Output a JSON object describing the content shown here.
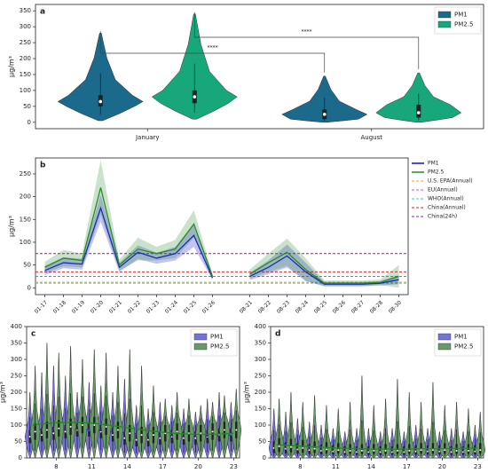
{
  "chart_data": [
    {
      "type": "violin",
      "label": "a",
      "y_label": "μg/m³",
      "categories": [
        "January",
        "August"
      ],
      "ylim": [
        -20,
        370
      ],
      "yticks": [
        0,
        50,
        100,
        150,
        200,
        250,
        300,
        350
      ],
      "legend": "upper right",
      "annotations": [
        "****",
        "****"
      ],
      "series": [
        {
          "name": "PM1",
          "color": "#1b6a8c",
          "min": [
            5,
            0
          ],
          "q1": [
            50,
            10
          ],
          "median": [
            65,
            25
          ],
          "q3": [
            85,
            40
          ],
          "max": [
            280,
            145
          ]
        },
        {
          "name": "PM2.5",
          "color": "#17a77a",
          "min": [
            10,
            0
          ],
          "q1": [
            60,
            15
          ],
          "median": [
            80,
            30
          ],
          "q3": [
            100,
            55
          ],
          "max": [
            340,
            155
          ]
        }
      ]
    },
    {
      "type": "line",
      "label": "b",
      "y_label": "μg/m³",
      "categories": [
        "01-17",
        "01-18",
        "01-19",
        "01-20",
        "01-21",
        "01-22",
        "01-23",
        "01-24",
        "01-25",
        "01-26",
        null,
        "08-21",
        "08-22",
        "08-23",
        "08-24",
        "08-25",
        "08-26",
        "08-27",
        "08-28",
        "08-30"
      ],
      "ylim": [
        -15,
        285
      ],
      "yticks": [
        0,
        50,
        100,
        150,
        200,
        250
      ],
      "legend": "outside right",
      "series": [
        {
          "name": "PM1",
          "color": "#1010d8",
          "values": [
            38,
            55,
            52,
            175,
            45,
            78,
            65,
            75,
            115,
            22,
            null,
            25,
            45,
            70,
            35,
            8,
            8,
            8,
            10,
            18
          ],
          "errors": [
            10,
            12,
            12,
            30,
            10,
            15,
            12,
            15,
            25,
            5,
            null,
            8,
            15,
            25,
            20,
            5,
            5,
            5,
            5,
            10
          ]
        },
        {
          "name": "PM2.5",
          "color": "#2a8a2a",
          "values": [
            45,
            65,
            60,
            220,
            50,
            85,
            75,
            85,
            140,
            25,
            null,
            30,
            55,
            78,
            40,
            10,
            10,
            10,
            12,
            25
          ],
          "errors": [
            12,
            18,
            15,
            60,
            12,
            25,
            15,
            20,
            30,
            6,
            null,
            10,
            20,
            30,
            25,
            6,
            6,
            6,
            6,
            25
          ]
        }
      ],
      "references": [
        {
          "name": "U.S. EPA(Annual)",
          "value": 12,
          "color": "#f0a030"
        },
        {
          "name": "EU(Annual)",
          "value": 25,
          "color": "#e040e0"
        },
        {
          "name": "WHO(Annual)",
          "value": 10,
          "color": "#30d0d0"
        },
        {
          "name": "China(Annual)",
          "value": 35,
          "color": "#e02020"
        },
        {
          "name": "China(24h)",
          "value": 75,
          "color": "#902090"
        }
      ]
    },
    {
      "type": "violin",
      "label": "c",
      "y_label": "μg/m³",
      "categories": [
        null,
        null,
        "8",
        null,
        null,
        "11",
        null,
        null,
        "14",
        null,
        null,
        "17",
        null,
        null,
        "20",
        null,
        null,
        "23"
      ],
      "ylim": [
        0,
        400
      ],
      "yticks": [
        0,
        50,
        100,
        150,
        200,
        250,
        300,
        350,
        400
      ],
      "legend": "upper right",
      "series": [
        {
          "name": "PM1",
          "color": "#7474d8",
          "trend_color": "#2030c0",
          "q1": [
            45,
            50,
            55,
            60,
            65,
            65,
            60,
            50,
            40,
            35,
            35,
            40,
            45,
            40,
            40,
            45,
            50,
            50
          ],
          "median": [
            65,
            70,
            75,
            80,
            85,
            85,
            80,
            70,
            60,
            55,
            55,
            60,
            65,
            60,
            60,
            65,
            70,
            70
          ],
          "q3": [
            85,
            90,
            95,
            100,
            105,
            105,
            100,
            90,
            80,
            75,
            75,
            80,
            85,
            80,
            80,
            85,
            90,
            90
          ],
          "max": [
            200,
            260,
            280,
            250,
            200,
            230,
            220,
            200,
            240,
            160,
            150,
            170,
            160,
            150,
            140,
            180,
            200,
            170
          ],
          "trend": [
            85,
            87,
            88,
            88,
            87,
            85,
            82,
            79,
            76,
            73,
            70,
            68,
            67,
            66,
            66,
            67,
            68,
            70
          ]
        },
        {
          "name": "PM2.5",
          "color": "#679a67",
          "trend_color": "#1f8a1f",
          "q1": [
            55,
            60,
            65,
            70,
            75,
            75,
            70,
            60,
            50,
            45,
            45,
            50,
            55,
            50,
            50,
            55,
            60,
            60
          ],
          "median": [
            80,
            85,
            90,
            95,
            100,
            100,
            95,
            85,
            75,
            70,
            70,
            75,
            80,
            75,
            75,
            80,
            85,
            85
          ],
          "q3": [
            105,
            110,
            115,
            120,
            125,
            125,
            120,
            110,
            100,
            95,
            95,
            100,
            105,
            100,
            100,
            105,
            110,
            110
          ],
          "max": [
            280,
            350,
            320,
            340,
            300,
            330,
            320,
            280,
            330,
            280,
            220,
            180,
            200,
            180,
            160,
            170,
            190,
            210
          ],
          "trend": [
            100,
            104,
            107,
            108,
            108,
            106,
            102,
            97,
            92,
            87,
            82,
            78,
            75,
            73,
            72,
            72,
            73,
            75
          ]
        }
      ]
    },
    {
      "type": "violin",
      "label": "d",
      "y_label": "μg/m³",
      "categories": [
        null,
        null,
        "8",
        null,
        null,
        "11",
        null,
        null,
        "14",
        null,
        null,
        "17",
        null,
        null,
        "20",
        null,
        null,
        "23"
      ],
      "ylim": [
        0,
        400
      ],
      "yticks": [
        0,
        50,
        100,
        150,
        200,
        250,
        300,
        350,
        400
      ],
      "legend": "upper right",
      "series": [
        {
          "name": "PM1",
          "color": "#7474d8",
          "trend_color": "#2030c0",
          "q1": [
            15,
            14,
            13,
            12,
            11,
            10,
            9,
            9,
            9,
            9,
            9,
            9,
            10,
            10,
            10,
            9,
            9,
            10
          ],
          "median": [
            30,
            28,
            26,
            24,
            22,
            20,
            18,
            18,
            18,
            18,
            18,
            18,
            20,
            20,
            20,
            18,
            18,
            20
          ],
          "q3": [
            50,
            48,
            45,
            42,
            40,
            38,
            35,
            35,
            35,
            35,
            35,
            35,
            38,
            38,
            38,
            35,
            35,
            38
          ],
          "max": [
            150,
            140,
            120,
            110,
            100,
            90,
            80,
            90,
            90,
            80,
            90,
            80,
            100,
            90,
            80,
            90,
            80,
            100
          ],
          "trend": [
            45,
            42,
            39,
            36,
            33,
            31,
            29,
            28,
            27,
            27,
            27,
            27,
            28,
            28,
            29,
            29,
            30,
            30
          ]
        },
        {
          "name": "PM2.5",
          "color": "#679a67",
          "trend_color": "#1f8a1f",
          "q1": [
            18,
            17,
            16,
            15,
            14,
            13,
            12,
            12,
            12,
            12,
            12,
            12,
            13,
            13,
            13,
            12,
            12,
            13
          ],
          "median": [
            35,
            33,
            30,
            28,
            26,
            24,
            22,
            22,
            22,
            22,
            22,
            22,
            24,
            24,
            24,
            22,
            22,
            24
          ],
          "q3": [
            60,
            58,
            55,
            50,
            48,
            45,
            42,
            42,
            42,
            42,
            42,
            42,
            45,
            45,
            45,
            42,
            42,
            45
          ],
          "max": [
            180,
            200,
            170,
            190,
            160,
            150,
            170,
            250,
            160,
            180,
            240,
            200,
            170,
            230,
            160,
            170,
            150,
            140
          ],
          "trend": [
            40,
            38,
            36,
            34,
            32,
            30,
            29,
            28,
            27,
            27,
            27,
            27,
            28,
            28,
            28,
            29,
            29,
            30
          ]
        }
      ]
    }
  ]
}
